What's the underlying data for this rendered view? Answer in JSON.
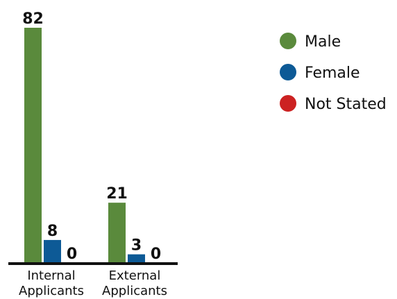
{
  "chart_data": {
    "type": "bar",
    "categories": [
      "Internal Applicants",
      "External Applicants"
    ],
    "category_lines": [
      [
        "Internal",
        "Applicants"
      ],
      [
        "External",
        "Applicants"
      ]
    ],
    "series": [
      {
        "name": "Male",
        "values": [
          82,
          21
        ],
        "color": "#5a8a3c"
      },
      {
        "name": "Female",
        "values": [
          8,
          3
        ],
        "color": "#0d5a96"
      },
      {
        "name": "Not Stated",
        "values": [
          0,
          0
        ],
        "color": "#cc2222"
      }
    ],
    "title": "",
    "xlabel": "",
    "ylabel": "",
    "ylim": [
      0,
      82
    ],
    "grid": false,
    "legend": "top-right",
    "axis_color": "#111111"
  }
}
